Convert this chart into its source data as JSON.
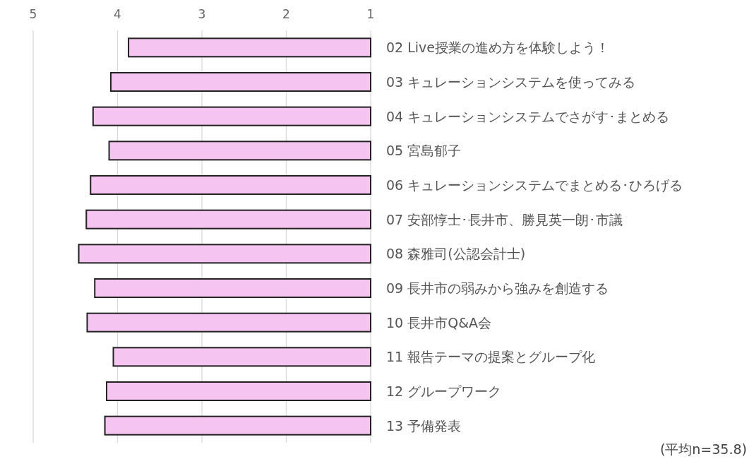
{
  "chart_data": {
    "type": "bar",
    "orientation": "horizontal",
    "categories": [
      "02 Live授業の進め方を体験しよう！",
      "03 キュレーションシステムを使ってみる",
      "04 キュレーションシステムでさがす･まとめる",
      "05 宮島郁子",
      "06 キュレーションシステムでまとめる･ひろげる",
      "07 安部惇士･長井市、勝見英一朗･市議",
      "08 森雅司(公認会計士)",
      "09 長井市の弱みから強みを創造する",
      "10 長井市Q&A会",
      "11 報告テーマの提案とグループ化",
      "12 グループワーク",
      "13 予備発表"
    ],
    "values": [
      3.87,
      4.08,
      4.29,
      4.1,
      4.32,
      4.37,
      4.46,
      4.27,
      4.36,
      4.05,
      4.13,
      4.15
    ],
    "color": "#f5c4f0",
    "xlim": [
      5,
      1
    ],
    "xticks": [
      5,
      4,
      3,
      2,
      1
    ],
    "grid": "x",
    "annotations": [
      "(平均n=35.8)"
    ]
  }
}
